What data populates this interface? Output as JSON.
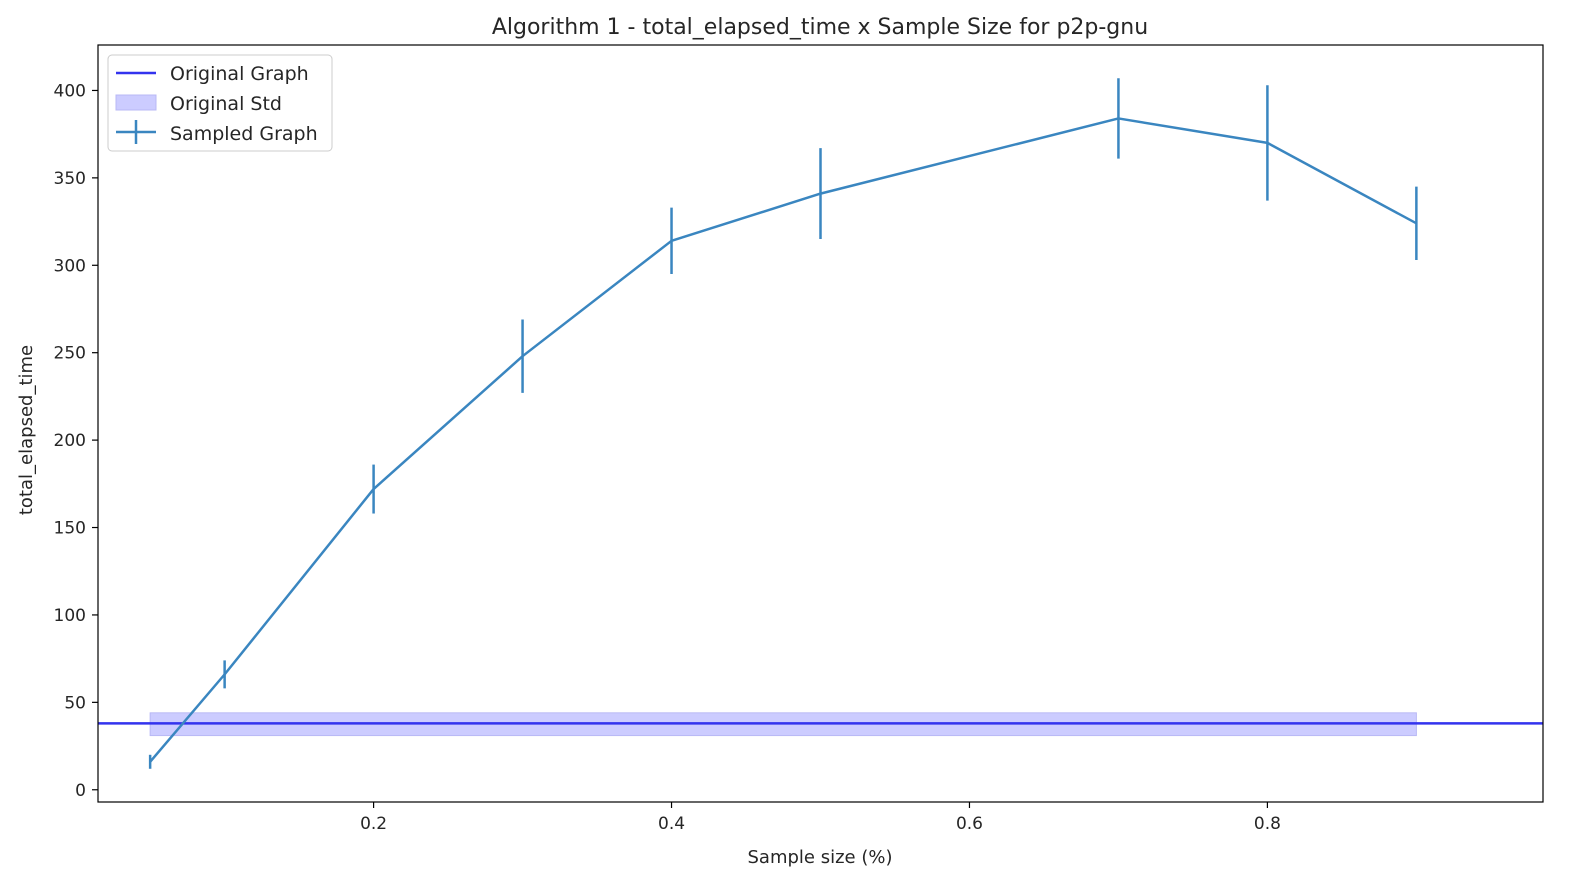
{
  "chart_data": {
    "type": "line",
    "title": "Algorithm 1 - total_elapsed_time x Sample Size for p2p-gnu",
    "xlabel": "Sample size (%)",
    "ylabel": "total_elapsed_time",
    "xlim": [
      0.015,
      0.985
    ],
    "ylim": [
      -7,
      426
    ],
    "xticks": [
      0.2,
      0.4,
      0.6,
      0.8
    ],
    "xtick_labels": [
      "0.2",
      "0.4",
      "0.6",
      "0.8"
    ],
    "yticks": [
      0,
      50,
      100,
      150,
      200,
      250,
      300,
      350,
      400
    ],
    "ytick_labels": [
      "0",
      "50",
      "100",
      "150",
      "200",
      "250",
      "300",
      "350",
      "400"
    ],
    "grid": false,
    "legend_position": "upper-left",
    "legend": [
      "Original Graph",
      "Original Std",
      "Sampled Graph"
    ],
    "original": {
      "name": "Original Graph",
      "value": 38,
      "color": "#3333ee",
      "std_name": "Original Std",
      "std_low": 31,
      "std_high": 44,
      "std_x_range": [
        0.05,
        0.9
      ],
      "std_color": "#ccccff"
    },
    "series": [
      {
        "name": "Sampled Graph",
        "color": "#3a86c0",
        "x": [
          0.05,
          0.1,
          0.2,
          0.3,
          0.4,
          0.5,
          0.7,
          0.8,
          0.9
        ],
        "y": [
          16,
          66,
          172,
          248,
          314,
          341,
          384,
          370,
          324
        ],
        "err": [
          4,
          8,
          14,
          21,
          19,
          26,
          23,
          33,
          21
        ]
      }
    ]
  }
}
